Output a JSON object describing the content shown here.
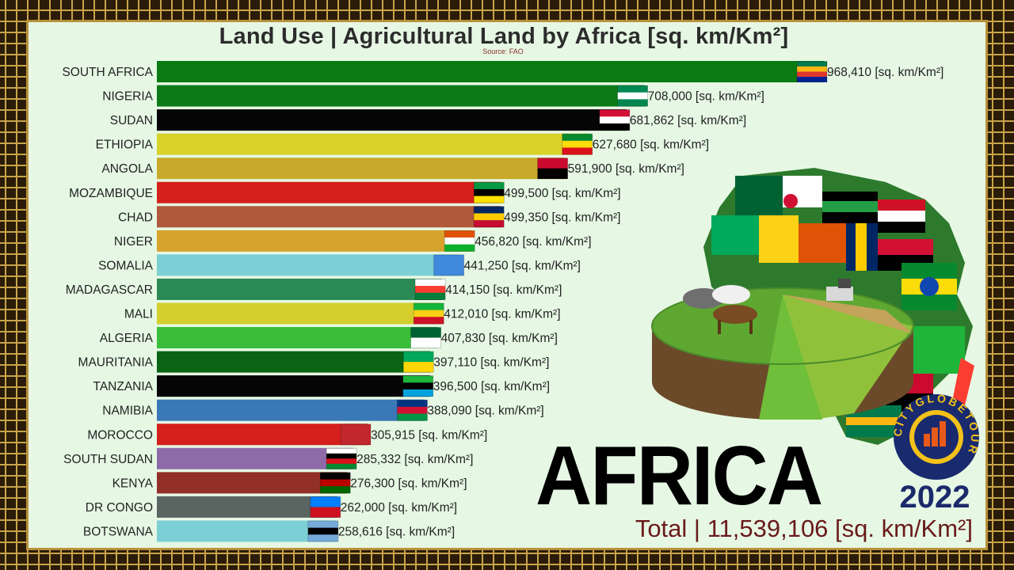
{
  "title": "Land Use | Agricultural Land by Africa [sq. km/Km²]",
  "source": "Source: FAO",
  "region_word": "AFRICA",
  "year": "2022",
  "total": "Total | 11,539,106 [sq. km/Km²]",
  "logo_text": "CITYGLOBETOUR",
  "unit": "[sq. km/Km²]",
  "chart_data": {
    "type": "bar",
    "orientation": "horizontal",
    "title": "Land Use | Agricultural Land by Africa [sq. km/Km²]",
    "categories": [
      "SOUTH AFRICA",
      "NIGERIA",
      "SUDAN",
      "ETHIOPIA",
      "ANGOLA",
      "MOZAMBIQUE",
      "CHAD",
      "NIGER",
      "SOMALIA",
      "MADAGASCAR",
      "MALI",
      "ALGERIA",
      "MAURITANIA",
      "TANZANIA",
      "NAMIBIA",
      "MOROCCO",
      "SOUTH SUDAN",
      "KENYA",
      "DR CONGO",
      "BOTSWANA"
    ],
    "values": [
      968410,
      708000,
      681862,
      627680,
      591900,
      499500,
      499350,
      456820,
      441250,
      414150,
      412010,
      407830,
      397110,
      396500,
      388090,
      305915,
      285332,
      276300,
      262000,
      258616
    ],
    "value_labels": [
      "968,410 [sq. km/Km²]",
      "708,000 [sq. km/Km²]",
      "681,862 [sq. km/Km²]",
      "627,680 [sq. km/Km²]",
      "591,900 [sq. km/Km²]",
      "499,500 [sq. km/Km²]",
      "499,350 [sq. km/Km²]",
      "456,820 [sq. km/Km²]",
      "441,250 [sq. km/Km²]",
      "414,150 [sq. km/Km²]",
      "412,010 [sq. km/Km²]",
      "407,830 [sq. km/Km²]",
      "397,110 [sq. km/Km²]",
      "396,500 [sq. km/Km²]",
      "388,090 [sq. km/Km²]",
      "305,915 [sq. km/Km²]",
      "285,332 [sq. km/Km²]",
      "276,300 [sq. km/Km²]",
      "262,000 [sq. km/Km²]",
      "258,616 [sq. km/Km²]"
    ],
    "colors": [
      "#0a7a12",
      "#0c7a16",
      "#050505",
      "#d8d22a",
      "#c9a92a",
      "#d41f1a",
      "#b0583a",
      "#d6a42c",
      "#7ccfd4",
      "#2a8a56",
      "#d4cf2c",
      "#3abd3a",
      "#0a6414",
      "#050505",
      "#3a78b8",
      "#d41f1a",
      "#8f6aa8",
      "#923028",
      "#5a6460",
      "#7ccfd4"
    ],
    "flags": [
      [
        "#007a4d",
        "#ffb612",
        "#de3831",
        "#002395"
      ],
      [
        "#008751",
        "#ffffff",
        "#008751"
      ],
      [
        "#d21034",
        "#ffffff",
        "#000000"
      ],
      [
        "#078930",
        "#fcdd09",
        "#da121a"
      ],
      [
        "#cc092f",
        "#000000"
      ],
      [
        "#009a44",
        "#000000",
        "#fce100"
      ],
      [
        "#002664",
        "#fecb00",
        "#c60c30"
      ],
      [
        "#e05206",
        "#ffffff",
        "#0db02b"
      ],
      [
        "#4189dd",
        "#4189dd"
      ],
      [
        "#ffffff",
        "#fc3d32",
        "#007e3a"
      ],
      [
        "#14b53a",
        "#fcd116",
        "#ce1126"
      ],
      [
        "#006233",
        "#ffffff"
      ],
      [
        "#00a95c",
        "#ffd700"
      ],
      [
        "#1eb53a",
        "#000000",
        "#00a3dd"
      ],
      [
        "#003580",
        "#d21034",
        "#009543"
      ],
      [
        "#c1272d",
        "#c1272d"
      ],
      [
        "#ffffff",
        "#000000",
        "#da121a",
        "#078930"
      ],
      [
        "#000000",
        "#bb0000",
        "#006600"
      ],
      [
        "#007fff",
        "#ce1021"
      ],
      [
        "#75aadb",
        "#000000",
        "#75aadb"
      ]
    ],
    "xlim": [
      0,
      968410
    ]
  }
}
